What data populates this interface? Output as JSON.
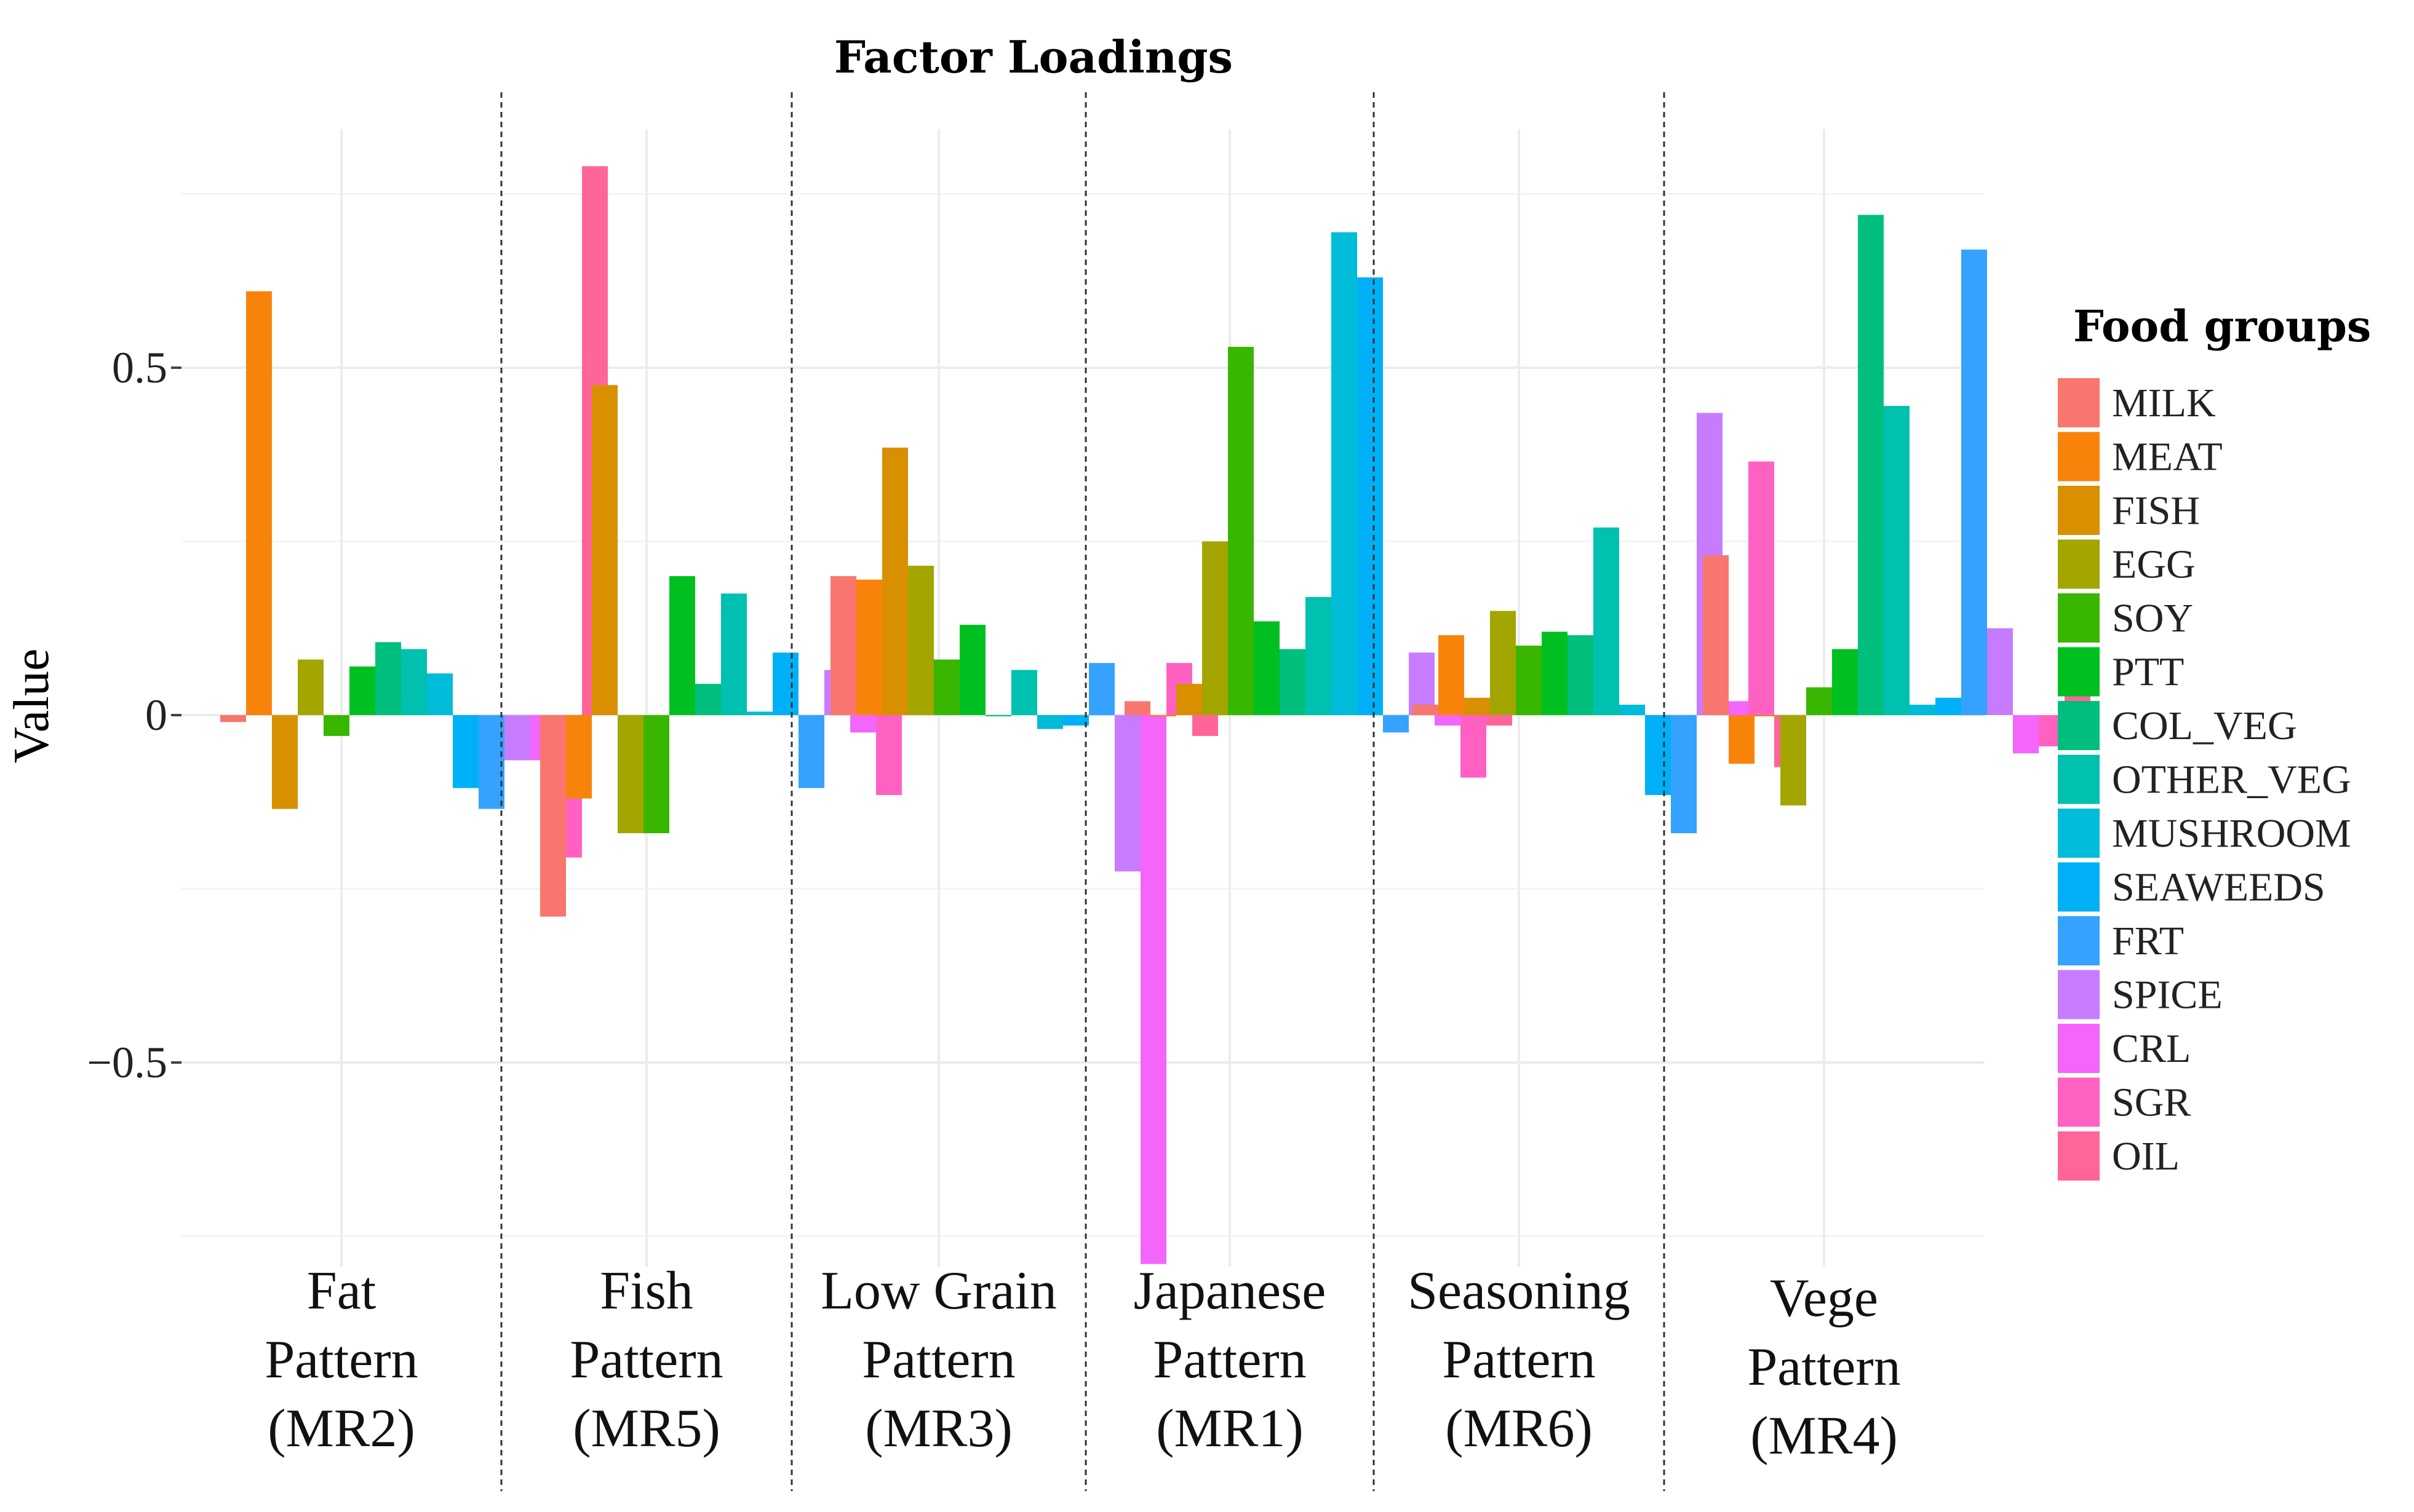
{
  "chart_data": {
    "type": "bar",
    "title": "Factor Loadings",
    "xlabel": "",
    "ylabel": "Value",
    "ylim": [
      -0.8,
      0.8
    ],
    "yticks": [
      {
        "value": 0.5,
        "label": "0.5"
      },
      {
        "value": 0,
        "label": "0"
      },
      {
        "value": -0.5,
        "label": "−0.5"
      }
    ],
    "grid": true,
    "legend_position": "right",
    "legend_title": "Food groups",
    "categories": [
      {
        "lines": [
          "Fat",
          "Pattern",
          "(MR2)"
        ]
      },
      {
        "lines": [
          "Fish",
          "Pattern",
          "(MR5)"
        ]
      },
      {
        "lines": [
          "Low Grain",
          "Pattern",
          "(MR3)"
        ]
      },
      {
        "lines": [
          "Japanese",
          "Pattern",
          "(MR1)"
        ]
      },
      {
        "lines": [
          "Seasoning",
          "Pattern",
          "(MR6)"
        ]
      },
      {
        "lines": [
          "Vege",
          "Pattern",
          "(MR4)"
        ]
      }
    ],
    "series": [
      {
        "name": "MILK",
        "color": "#F8766D",
        "values": [
          -0.01,
          -0.29,
          0.2,
          0.02,
          0.015,
          0.23
        ]
      },
      {
        "name": "MEAT",
        "color": "#F8830A",
        "values": [
          0.61,
          -0.12,
          0.195,
          0.0,
          0.115,
          -0.07
        ]
      },
      {
        "name": "FISH",
        "color": "#D89000",
        "values": [
          -0.135,
          0.475,
          0.385,
          0.045,
          0.025,
          0.0
        ]
      },
      {
        "name": "EGG",
        "color": "#A3A500",
        "values": [
          0.08,
          -0.17,
          0.215,
          0.25,
          0.15,
          -0.13
        ]
      },
      {
        "name": "SOY",
        "color": "#39B600",
        "values": [
          -0.03,
          -0.17,
          0.08,
          0.53,
          0.1,
          0.04
        ]
      },
      {
        "name": "PTT",
        "color": "#00BF20",
        "values": [
          0.07,
          0.2,
          0.13,
          0.135,
          0.12,
          0.095
        ]
      },
      {
        "name": "COL_VEG",
        "color": "#00BF7D",
        "values": [
          0.105,
          0.045,
          0.0,
          0.095,
          0.115,
          0.72
        ]
      },
      {
        "name": "OTHER_VEG",
        "color": "#00C0AF",
        "values": [
          0.095,
          0.175,
          0.065,
          0.17,
          0.27,
          0.445
        ]
      },
      {
        "name": "MUSHROOM",
        "color": "#00BCD8",
        "values": [
          0.06,
          0.005,
          -0.02,
          0.695,
          0.015,
          0.015
        ]
      },
      {
        "name": "SEAWEEDS",
        "color": "#00B0F6",
        "values": [
          -0.105,
          0.09,
          -0.015,
          0.63,
          -0.115,
          0.025
        ]
      },
      {
        "name": "FRT",
        "color": "#35A2FF",
        "values": [
          -0.135,
          -0.105,
          0.075,
          -0.025,
          -0.17,
          0.67
        ]
      },
      {
        "name": "SPICE",
        "color": "#C77CFF",
        "values": [
          -0.065,
          0.065,
          -0.225,
          0.09,
          0.435,
          0.125
        ]
      },
      {
        "name": "CRL",
        "color": "#F365FB",
        "values": [
          -0.065,
          -0.025,
          -0.79,
          -0.015,
          0.02,
          -0.055
        ]
      },
      {
        "name": "SGR",
        "color": "#FF61C3",
        "values": [
          -0.205,
          -0.115,
          0.075,
          -0.09,
          0.365,
          -0.045
        ]
      },
      {
        "name": "OIL",
        "color": "#FF6599",
        "values": [
          0.79,
          0.03,
          -0.03,
          -0.015,
          -0.075,
          0.04
        ]
      }
    ]
  }
}
